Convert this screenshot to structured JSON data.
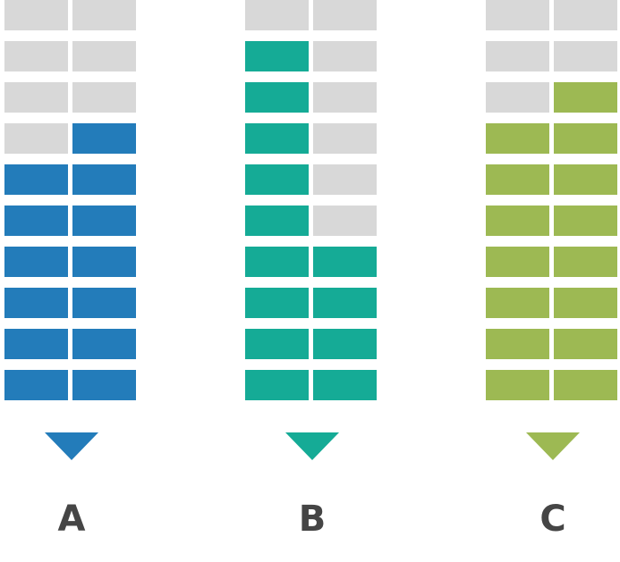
{
  "colors": {
    "empty": "#d8d8d8"
  },
  "columns": [
    {
      "label": "A",
      "color": "#237cba",
      "grid": [
        [
          0,
          0
        ],
        [
          0,
          0
        ],
        [
          0,
          0
        ],
        [
          0,
          1
        ],
        [
          1,
          1
        ],
        [
          1,
          1
        ],
        [
          1,
          1
        ],
        [
          1,
          1
        ],
        [
          1,
          1
        ],
        [
          1,
          1
        ]
      ]
    },
    {
      "label": "B",
      "color": "#15ab96",
      "grid": [
        [
          0,
          0
        ],
        [
          1,
          0
        ],
        [
          1,
          0
        ],
        [
          1,
          0
        ],
        [
          1,
          0
        ],
        [
          1,
          0
        ],
        [
          1,
          1
        ],
        [
          1,
          1
        ],
        [
          1,
          1
        ],
        [
          1,
          1
        ]
      ]
    },
    {
      "label": "C",
      "color": "#9db953",
      "grid": [
        [
          0,
          0
        ],
        [
          0,
          0
        ],
        [
          0,
          1
        ],
        [
          1,
          1
        ],
        [
          1,
          1
        ],
        [
          1,
          1
        ],
        [
          1,
          1
        ],
        [
          1,
          1
        ],
        [
          1,
          1
        ],
        [
          1,
          1
        ]
      ]
    }
  ]
}
